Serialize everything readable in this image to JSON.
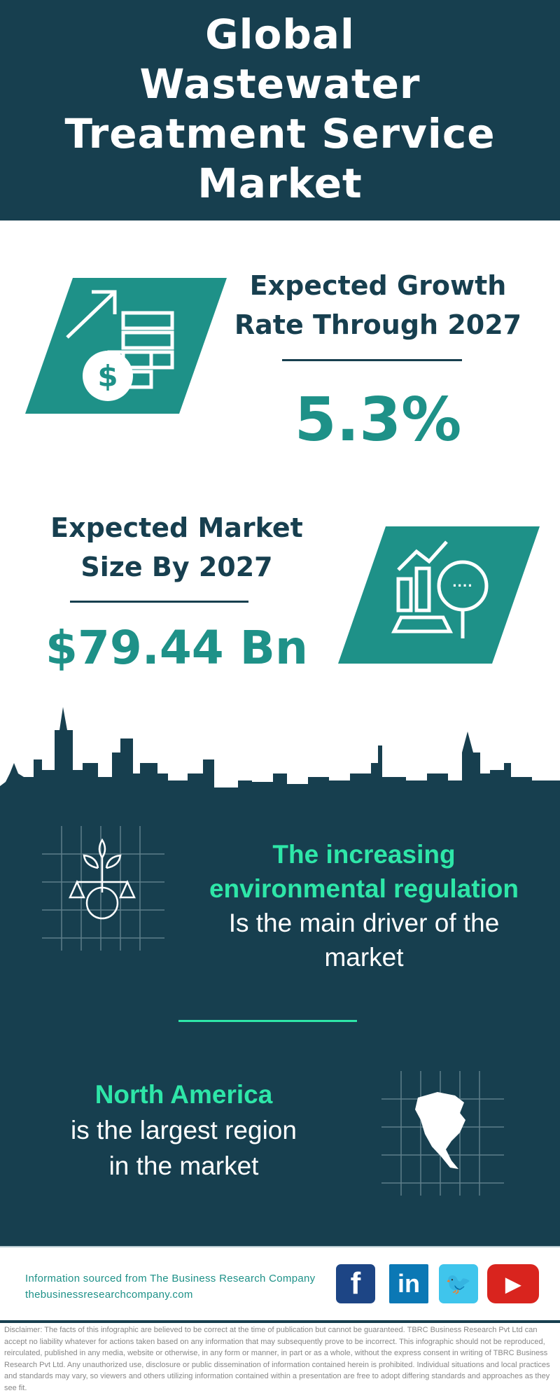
{
  "title": [
    "Global",
    "Wastewater",
    "Treatment Service",
    "Market"
  ],
  "growth": {
    "label": [
      "Expected Growth",
      "Rate Through 2027"
    ],
    "value": "5.3%",
    "icon": "money-growth-icon"
  },
  "market_size": {
    "label": [
      "Expected Market",
      "Size By 2027"
    ],
    "value": "$79.44 Bn",
    "icon": "market-analysis-icon"
  },
  "driver": {
    "highlight": [
      "The increasing",
      "environmental regulation"
    ],
    "rest": [
      "Is the main driver of the",
      "market"
    ],
    "icon": "environment-scale-globe-icon"
  },
  "region": {
    "highlight": "North America",
    "rest": [
      "is the largest region",
      "in the market"
    ],
    "icon": "north-america-map-icon"
  },
  "footer": {
    "source": "Information sourced from The Business Research Company",
    "url": "thebusinessresearchcompany.com",
    "social": [
      "facebook",
      "linkedin",
      "twitter",
      "youtube"
    ]
  },
  "disclaimer": "Disclaimer: The facts of this infographic are believed to be correct at the time of publication but cannot be guaranteed. TBRC Business Research Pvt Ltd can accept no liability whatever for actions taken based on any information that may subsequently prove to be incorrect. This infographic should not be reproduced, reirculated, published in any media, website or otherwise, in any form or manner, in part or as a whole, without the express consent in writing of TBRC Business Research Pvt Ltd. Any unauthorized use, disclosure or public dissemination of information contained herein is prohibited. Individual situations and local practices and standards may vary, so viewers and others utilizing information contained within a presentation are free to adopt differing standards and approaches as they see fit.",
  "colors": {
    "dark": "#173f4f",
    "teal": "#1e9188",
    "green": "#2ee6a8"
  }
}
